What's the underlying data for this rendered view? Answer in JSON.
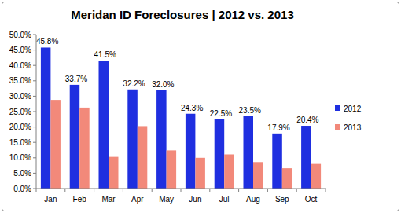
{
  "chart_data": {
    "type": "bar",
    "title": "Meridan ID Foreclosures | 2012 vs. 2013",
    "categories": [
      "Jan",
      "Feb",
      "Mar",
      "Apr",
      "May",
      "Jun",
      "Jul",
      "Aug",
      "Sep",
      "Oct"
    ],
    "series": [
      {
        "name": "2012",
        "color": "#1f2fe0",
        "values": [
          45.8,
          33.7,
          41.5,
          32.2,
          32.0,
          24.3,
          22.5,
          23.5,
          17.9,
          20.4
        ],
        "data_labels": true,
        "value_labels": [
          "45.8%",
          "33.7%",
          "41.5%",
          "32.2%",
          "32.0%",
          "24.3%",
          "22.5%",
          "23.5%",
          "17.9%",
          "20.4%"
        ]
      },
      {
        "name": "2013",
        "color": "#f2897a",
        "values": [
          28.8,
          26.3,
          10.3,
          20.3,
          12.4,
          10.0,
          11.1,
          8.6,
          6.6,
          8.0
        ]
      }
    ],
    "ylim": [
      0,
      50
    ],
    "yticks": [
      {
        "value": 0,
        "label": "0.0%"
      },
      {
        "value": 5,
        "label": "5.0%"
      },
      {
        "value": 10,
        "label": "10.0%"
      },
      {
        "value": 15,
        "label": "15.0%"
      },
      {
        "value": 20,
        "label": "20.0%"
      },
      {
        "value": 25,
        "label": "25.0%"
      },
      {
        "value": 30,
        "label": "30.0%"
      },
      {
        "value": 35,
        "label": "35.0%"
      },
      {
        "value": 40,
        "label": "40.0%"
      },
      {
        "value": 45,
        "label": "45.0%"
      },
      {
        "value": 50,
        "label": "50.0%"
      }
    ],
    "grid": false,
    "legend": "right"
  }
}
